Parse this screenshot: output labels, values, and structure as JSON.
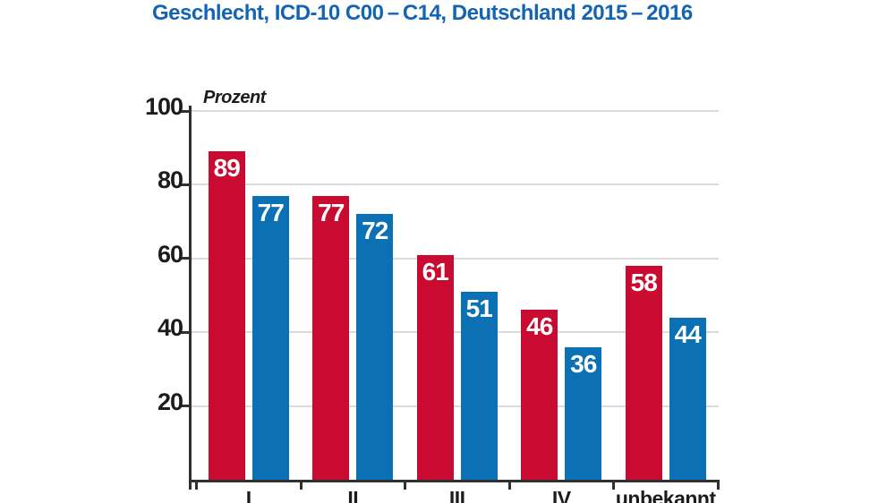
{
  "page": {
    "background": "#FFFFFF"
  },
  "colors": {
    "title_blue": "#1464B4",
    "bar_red": "#C90B31",
    "bar_blue": "#0C70B4",
    "axis": "#303030",
    "gridline": "#DBDBDB",
    "ink": "#1C1C1E",
    "value_label": "#FFFFFF"
  },
  "chart_data": {
    "type": "bar",
    "title": "Geschlecht, ICD-10 C00 – C14, Deutschland 2015 – 2016",
    "ylabel": "Prozent",
    "xlabel": "",
    "categories": [
      "I",
      "II",
      "III",
      "IV",
      "unbekannt"
    ],
    "series": [
      {
        "key": "red",
        "color": "#C90B31",
        "values": [
          89,
          77,
          61,
          46,
          58
        ]
      },
      {
        "key": "blue",
        "color": "#0C70B4",
        "values": [
          77,
          72,
          51,
          36,
          44
        ]
      }
    ],
    "ylim": [
      0,
      100
    ],
    "yticks": [
      20,
      40,
      60,
      80,
      100
    ],
    "grid": true,
    "value_labels_shown": true,
    "legend_position": "none"
  }
}
